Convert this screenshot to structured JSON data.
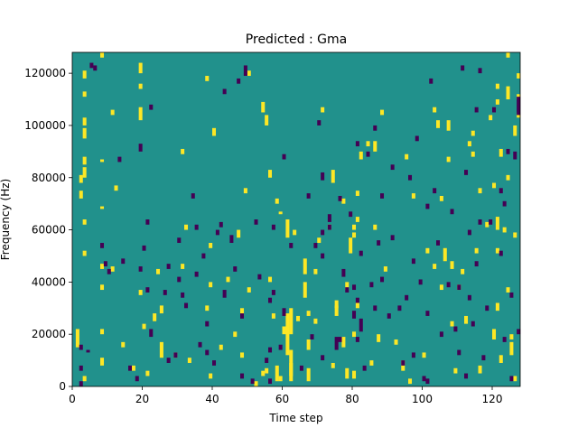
{
  "chart_data": {
    "type": "heatmap",
    "title": "Predicted : Gma",
    "xlabel": "Time step",
    "ylabel": "Frequency (Hz)",
    "xlim": [
      0,
      128
    ],
    "ylim": [
      0,
      128000
    ],
    "x_ticks": [
      0,
      20,
      40,
      60,
      80,
      100,
      120
    ],
    "y_ticks": [
      0,
      20000,
      40000,
      60000,
      80000,
      100000,
      120000
    ],
    "y_tick_labels": [
      "0",
      "20000",
      "40000",
      "60000",
      "80000",
      "100000",
      "120000"
    ],
    "rows": 128,
    "cols": 128,
    "colors": {
      "background": "#21918c",
      "high": "#fde725",
      "low": "#440154"
    },
    "cells_high": [
      [
        1,
        15,
        7
      ],
      [
        2,
        72,
        3
      ],
      [
        2,
        78,
        3
      ],
      [
        3,
        118,
        3
      ],
      [
        3,
        111,
        2
      ],
      [
        3,
        100,
        3
      ],
      [
        3,
        95,
        4
      ],
      [
        3,
        85,
        3
      ],
      [
        3,
        80,
        4
      ],
      [
        3,
        62,
        2
      ],
      [
        3,
        50,
        2
      ],
      [
        3,
        2,
        2
      ],
      [
        8,
        9,
        2
      ],
      [
        8,
        8,
        2
      ],
      [
        8,
        20,
        2
      ],
      [
        8,
        37,
        2
      ],
      [
        8,
        45,
        2
      ],
      [
        8,
        68,
        1
      ],
      [
        8,
        86,
        1
      ],
      [
        8,
        126,
        2
      ],
      [
        11,
        104,
        2
      ],
      [
        11,
        44,
        2
      ],
      [
        12,
        75,
        2
      ],
      [
        14,
        15,
        2
      ],
      [
        17,
        6,
        2
      ],
      [
        19,
        35,
        2
      ],
      [
        19,
        102,
        5
      ],
      [
        19,
        114,
        2
      ],
      [
        19,
        120,
        4
      ],
      [
        21,
        4,
        2
      ],
      [
        20,
        22,
        2
      ],
      [
        23,
        25,
        3
      ],
      [
        24,
        43,
        2
      ],
      [
        25,
        28,
        3
      ],
      [
        25,
        11,
        6
      ],
      [
        29,
        11,
        2
      ],
      [
        31,
        89,
        2
      ],
      [
        31,
        45,
        2
      ],
      [
        32,
        60,
        2
      ],
      [
        33,
        9,
        2
      ],
      [
        38,
        29,
        2
      ],
      [
        39,
        3,
        2
      ],
      [
        39,
        38,
        2
      ],
      [
        38,
        117,
        2
      ],
      [
        39,
        53,
        2
      ],
      [
        40,
        96,
        3
      ],
      [
        42,
        14,
        2
      ],
      [
        44,
        40,
        2
      ],
      [
        46,
        19,
        2
      ],
      [
        47,
        57,
        3
      ],
      [
        48,
        27,
        3
      ],
      [
        48,
        11,
        2
      ],
      [
        49,
        74,
        2
      ],
      [
        50,
        36,
        2
      ],
      [
        50,
        119,
        2
      ],
      [
        52,
        0,
        2
      ],
      [
        54,
        4,
        2
      ],
      [
        54,
        105,
        4
      ],
      [
        55,
        5,
        2
      ],
      [
        55,
        100,
        4
      ],
      [
        56,
        40,
        2
      ],
      [
        56,
        80,
        3
      ],
      [
        57,
        26,
        2
      ],
      [
        58,
        2,
        6
      ],
      [
        58,
        70,
        2
      ],
      [
        59,
        66,
        1
      ],
      [
        60,
        20,
        3
      ],
      [
        59,
        2,
        2
      ],
      [
        61,
        12,
        16
      ],
      [
        61,
        57,
        7
      ],
      [
        62,
        4,
        10
      ],
      [
        62,
        20,
        10
      ],
      [
        62,
        2,
        7
      ],
      [
        63,
        58,
        2
      ],
      [
        64,
        25,
        2
      ],
      [
        66,
        43,
        6
      ],
      [
        66,
        34,
        6
      ],
      [
        67,
        27,
        2
      ],
      [
        67,
        14,
        4
      ],
      [
        67,
        2,
        5
      ],
      [
        69,
        43,
        2
      ],
      [
        69,
        24,
        2
      ],
      [
        70,
        55,
        2
      ],
      [
        71,
        105,
        2
      ],
      [
        73,
        60,
        2
      ],
      [
        75,
        27,
        4
      ],
      [
        75,
        30,
        3
      ],
      [
        74,
        78,
        5
      ],
      [
        74,
        7,
        2
      ],
      [
        77,
        15,
        4
      ],
      [
        77,
        70,
        2
      ],
      [
        78,
        37,
        3
      ],
      [
        78,
        3,
        4
      ],
      [
        79,
        51,
        6
      ],
      [
        80,
        3,
        3
      ],
      [
        80,
        60,
        2
      ],
      [
        80,
        57,
        2
      ],
      [
        80,
        19,
        2
      ],
      [
        81,
        30,
        2
      ],
      [
        81,
        63,
        2
      ],
      [
        81,
        73,
        2
      ],
      [
        82,
        87,
        3
      ],
      [
        84,
        92,
        2
      ],
      [
        85,
        8,
        2
      ],
      [
        86,
        60,
        2
      ],
      [
        86,
        90,
        4
      ],
      [
        87,
        17,
        3
      ],
      [
        88,
        104,
        2
      ],
      [
        89,
        44,
        2
      ],
      [
        92,
        16,
        2
      ],
      [
        94,
        6,
        4
      ],
      [
        95,
        87,
        2
      ],
      [
        96,
        1,
        2
      ],
      [
        97,
        72,
        2
      ],
      [
        100,
        11,
        2
      ],
      [
        101,
        51,
        2
      ],
      [
        103,
        45,
        2
      ],
      [
        104,
        99,
        3
      ],
      [
        103,
        105,
        2
      ],
      [
        105,
        71,
        2
      ],
      [
        105,
        37,
        2
      ],
      [
        106,
        48,
        5
      ],
      [
        107,
        98,
        4
      ],
      [
        107,
        86,
        2
      ],
      [
        108,
        23,
        2
      ],
      [
        108,
        45,
        3
      ],
      [
        109,
        5,
        2
      ],
      [
        110,
        37,
        2
      ],
      [
        111,
        43,
        2
      ],
      [
        112,
        24,
        3
      ],
      [
        113,
        92,
        2
      ],
      [
        114,
        88,
        2
      ],
      [
        114,
        96,
        2
      ],
      [
        115,
        51,
        2
      ],
      [
        116,
        5,
        3
      ],
      [
        116,
        74,
        2
      ],
      [
        118,
        61,
        2
      ],
      [
        119,
        102,
        2
      ],
      [
        120,
        76,
        2
      ],
      [
        120,
        18,
        4
      ],
      [
        121,
        51,
        2
      ],
      [
        121,
        60,
        5
      ],
      [
        121,
        29,
        3
      ],
      [
        121,
        114,
        2
      ],
      [
        121,
        108,
        2
      ],
      [
        122,
        88,
        3
      ],
      [
        122,
        9,
        3
      ],
      [
        123,
        59,
        2
      ],
      [
        124,
        126,
        2
      ],
      [
        124,
        110,
        5
      ],
      [
        124,
        36,
        2
      ],
      [
        124,
        79,
        2
      ],
      [
        125,
        12,
        5
      ],
      [
        125,
        18,
        2
      ],
      [
        126,
        2,
        2
      ],
      [
        126,
        57,
        2
      ],
      [
        126,
        96,
        4
      ],
      [
        127,
        103,
        2
      ],
      [
        127,
        110,
        2
      ],
      [
        127,
        118,
        2
      ]
    ],
    "cells_low": [
      [
        2,
        0,
        2
      ],
      [
        2,
        6,
        2
      ],
      [
        2,
        14,
        2
      ],
      [
        4,
        13,
        1
      ],
      [
        5,
        122,
        2
      ],
      [
        6,
        121,
        2
      ],
      [
        8,
        53,
        2
      ],
      [
        9,
        46,
        2
      ],
      [
        10,
        43,
        2
      ],
      [
        13,
        86,
        2
      ],
      [
        14,
        47,
        2
      ],
      [
        16,
        6,
        2
      ],
      [
        18,
        2,
        2
      ],
      [
        19,
        44,
        2
      ],
      [
        19,
        90,
        3
      ],
      [
        20,
        52,
        2
      ],
      [
        21,
        62,
        2
      ],
      [
        21,
        36,
        2
      ],
      [
        22,
        19,
        3
      ],
      [
        22,
        106,
        2
      ],
      [
        26,
        35,
        2
      ],
      [
        27,
        45,
        2
      ],
      [
        27,
        9,
        2
      ],
      [
        29,
        11,
        2
      ],
      [
        30,
        40,
        2
      ],
      [
        30,
        55,
        2
      ],
      [
        31,
        34,
        2
      ],
      [
        32,
        30,
        2
      ],
      [
        34,
        72,
        2
      ],
      [
        35,
        42,
        2
      ],
      [
        35,
        60,
        2
      ],
      [
        36,
        15,
        2
      ],
      [
        37,
        49,
        2
      ],
      [
        38,
        23,
        2
      ],
      [
        38,
        12,
        2
      ],
      [
        40,
        8,
        2
      ],
      [
        41,
        58,
        2
      ],
      [
        42,
        61,
        2
      ],
      [
        43,
        112,
        2
      ],
      [
        43,
        34,
        3
      ],
      [
        45,
        55,
        3
      ],
      [
        46,
        44,
        2
      ],
      [
        47,
        116,
        2
      ],
      [
        48,
        3,
        2
      ],
      [
        48,
        26,
        2
      ],
      [
        49,
        119,
        4
      ],
      [
        51,
        1,
        2
      ],
      [
        52,
        62,
        2
      ],
      [
        53,
        41,
        2
      ],
      [
        55,
        9,
        2
      ],
      [
        56,
        1,
        2
      ],
      [
        56,
        13,
        2
      ],
      [
        56,
        32,
        2
      ],
      [
        57,
        35,
        2
      ],
      [
        57,
        60,
        2
      ],
      [
        59,
        14,
        2
      ],
      [
        60,
        87,
        2
      ],
      [
        60,
        27,
        3
      ],
      [
        62,
        53,
        2
      ],
      [
        65,
        6,
        2
      ],
      [
        67,
        72,
        2
      ],
      [
        68,
        18,
        2
      ],
      [
        69,
        53,
        2
      ],
      [
        70,
        100,
        2
      ],
      [
        71,
        10,
        2
      ],
      [
        71,
        49,
        2
      ],
      [
        71,
        79,
        3
      ],
      [
        71,
        58,
        2
      ],
      [
        73,
        60,
        2
      ],
      [
        73,
        63,
        3
      ],
      [
        75,
        14,
        5
      ],
      [
        76,
        17,
        2
      ],
      [
        76,
        71,
        2
      ],
      [
        77,
        42,
        3
      ],
      [
        78,
        36,
        2
      ],
      [
        79,
        65,
        2
      ],
      [
        80,
        37,
        2
      ],
      [
        80,
        26,
        3
      ],
      [
        81,
        17,
        2
      ],
      [
        81,
        92,
        2
      ],
      [
        81,
        32,
        2
      ],
      [
        82,
        50,
        2
      ],
      [
        82,
        21,
        5
      ],
      [
        84,
        88,
        2
      ],
      [
        83,
        6,
        2
      ],
      [
        85,
        38,
        2
      ],
      [
        86,
        29,
        2
      ],
      [
        86,
        98,
        2
      ],
      [
        87,
        54,
        2
      ],
      [
        88,
        72,
        2
      ],
      [
        88,
        40,
        2
      ],
      [
        90,
        26,
        2
      ],
      [
        91,
        56,
        2
      ],
      [
        91,
        83,
        2
      ],
      [
        93,
        29,
        2
      ],
      [
        94,
        8,
        2
      ],
      [
        95,
        33,
        2
      ],
      [
        96,
        79,
        2
      ],
      [
        97,
        47,
        2
      ],
      [
        97,
        11,
        2
      ],
      [
        98,
        94,
        2
      ],
      [
        99,
        39,
        2
      ],
      [
        100,
        2,
        2
      ],
      [
        101,
        68,
        2
      ],
      [
        101,
        27,
        2
      ],
      [
        101,
        1,
        2
      ],
      [
        102,
        116,
        2
      ],
      [
        103,
        74,
        2
      ],
      [
        104,
        54,
        2
      ],
      [
        105,
        19,
        2
      ],
      [
        107,
        38,
        2
      ],
      [
        108,
        66,
        2
      ],
      [
        109,
        21,
        2
      ],
      [
        110,
        12,
        2
      ],
      [
        110,
        37,
        2
      ],
      [
        111,
        121,
        2
      ],
      [
        112,
        81,
        2
      ],
      [
        112,
        3,
        2
      ],
      [
        113,
        58,
        2
      ],
      [
        113,
        33,
        2
      ],
      [
        114,
        23,
        2
      ],
      [
        115,
        105,
        2
      ],
      [
        115,
        46,
        2
      ],
      [
        116,
        62,
        2
      ],
      [
        116,
        120,
        2
      ],
      [
        117,
        10,
        2
      ],
      [
        118,
        29,
        2
      ],
      [
        119,
        62,
        2
      ],
      [
        120,
        105,
        2
      ],
      [
        122,
        74,
        2
      ],
      [
        122,
        50,
        2
      ],
      [
        123,
        69,
        2
      ],
      [
        123,
        17,
        2
      ],
      [
        124,
        89,
        2
      ],
      [
        125,
        2,
        2
      ],
      [
        125,
        34,
        2
      ],
      [
        126,
        87,
        3
      ],
      [
        127,
        104,
        7
      ],
      [
        127,
        20,
        2
      ]
    ]
  }
}
